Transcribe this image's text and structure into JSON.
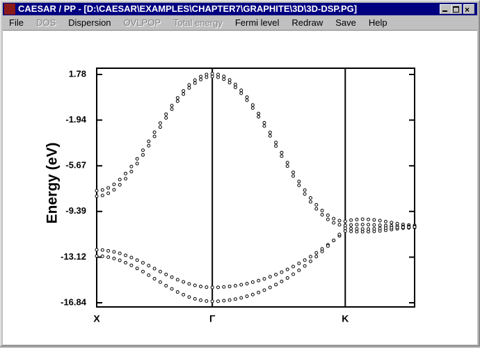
{
  "window": {
    "title": "CAESAR / PP - [D:\\CAESAR\\EXAMPLES\\CHAPTER7\\GRAPHITE\\3D\\3D-DSP.PG]"
  },
  "menu": [
    {
      "label": "File",
      "enabled": true
    },
    {
      "label": "DOS",
      "enabled": false
    },
    {
      "label": "Dispersion",
      "enabled": true
    },
    {
      "label": "OVLPOP",
      "enabled": false
    },
    {
      "label": "Total energy",
      "enabled": false
    },
    {
      "label": "Fermi level",
      "enabled": true
    },
    {
      "label": "Redraw",
      "enabled": true
    },
    {
      "label": "Save",
      "enabled": true
    },
    {
      "label": "Help",
      "enabled": true
    }
  ],
  "chart_data": {
    "type": "scatter",
    "y_label": "Energy (eV)",
    "categories": [
      "X",
      null,
      null,
      null,
      null,
      null,
      null,
      null,
      null,
      null,
      null,
      null,
      null,
      null,
      null,
      null,
      null,
      null,
      null,
      null,
      "Γ",
      null,
      null,
      null,
      null,
      null,
      null,
      null,
      null,
      null,
      null,
      null,
      null,
      null,
      null,
      null,
      null,
      null,
      null,
      null,
      null,
      null,
      null,
      "K",
      null,
      null,
      null,
      null,
      null,
      null,
      null,
      null,
      null,
      null,
      null,
      null
    ],
    "ylim": [
      -17.18,
      2.29
    ],
    "yticks": [
      1.78,
      -1.94,
      -5.67,
      -9.39,
      -13.12,
      -16.84
    ],
    "color": "#000000",
    "series": [
      {
        "values": [
          -7.7,
          -7.64,
          -7.47,
          -7.18,
          -6.79,
          -6.3,
          -5.73,
          -5.1,
          -4.4,
          -3.68,
          -2.93,
          -2.18,
          -1.46,
          -0.76,
          -0.13,
          0.44,
          0.93,
          1.32,
          1.61,
          1.78,
          1.84,
          1.78,
          1.62,
          1.34,
          0.96,
          0.49,
          -0.07,
          -0.71,
          -1.41,
          -2.16,
          -2.95,
          -3.77,
          -4.59,
          -5.41,
          -6.2,
          -6.95,
          -7.65,
          -8.29,
          -8.85,
          -9.32,
          -9.7,
          -9.98,
          -10.14,
          -10.2,
          -10.1,
          -10.05,
          -10.03,
          -10.04,
          -10.08,
          -10.14,
          -10.22,
          -10.3,
          -10.38,
          -10.45,
          -10.5,
          -10.53
        ]
      },
      {
        "values": [
          -8.15,
          -8.09,
          -7.91,
          -7.62,
          -7.22,
          -6.72,
          -6.14,
          -5.49,
          -4.78,
          -4.03,
          -3.27,
          -2.51,
          -1.76,
          -1.05,
          -0.4,
          0.18,
          0.68,
          1.08,
          1.37,
          1.55,
          1.61,
          1.55,
          1.39,
          1.11,
          0.73,
          0.25,
          -0.32,
          -0.96,
          -1.67,
          -2.43,
          -3.23,
          -4.05,
          -4.88,
          -5.7,
          -6.5,
          -7.26,
          -7.97,
          -8.61,
          -9.18,
          -9.66,
          -10.04,
          -10.32,
          -10.48,
          -10.54,
          -10.5,
          -10.47,
          -10.46,
          -10.47,
          -10.49,
          -10.52,
          -10.55,
          -10.57,
          -10.59,
          -10.6,
          -10.61,
          -10.61
        ]
      },
      {
        "values": [
          -12.52,
          -12.54,
          -12.6,
          -12.69,
          -12.81,
          -12.97,
          -13.15,
          -13.36,
          -13.58,
          -13.81,
          -14.06,
          -14.3,
          -14.53,
          -14.75,
          -14.96,
          -15.14,
          -15.3,
          -15.42,
          -15.51,
          -15.57,
          -15.59,
          -15.58,
          -15.55,
          -15.51,
          -15.45,
          -15.37,
          -15.28,
          -15.16,
          -15.03,
          -14.89,
          -14.72,
          -14.54,
          -14.34,
          -14.12,
          -13.89,
          -13.63,
          -13.36,
          -13.08,
          -12.77,
          -12.45,
          -12.11,
          -11.76,
          -11.38,
          -10.99,
          -11.02,
          -11.04,
          -11.05,
          -11.04,
          -11.02,
          -10.98,
          -10.93,
          -10.87,
          -10.81,
          -10.76,
          -10.73,
          -10.71
        ]
      },
      {
        "values": [
          -13.03,
          -13.05,
          -13.12,
          -13.23,
          -13.38,
          -13.57,
          -13.79,
          -14.04,
          -14.3,
          -14.59,
          -14.88,
          -15.16,
          -15.45,
          -15.71,
          -15.96,
          -16.18,
          -16.37,
          -16.52,
          -16.63,
          -16.7,
          -16.72,
          -16.71,
          -16.67,
          -16.62,
          -16.54,
          -16.44,
          -16.31,
          -16.17,
          -16.0,
          -15.81,
          -15.59,
          -15.36,
          -15.1,
          -14.82,
          -14.51,
          -14.19,
          -13.84,
          -13.46,
          -13.07,
          -12.65,
          -12.21,
          -11.75,
          -11.27,
          -10.76,
          -10.79,
          -10.81,
          -10.82,
          -10.82,
          -10.8,
          -10.78,
          -10.75,
          -10.72,
          -10.7,
          -10.68,
          -10.67,
          -10.66
        ]
      }
    ]
  }
}
